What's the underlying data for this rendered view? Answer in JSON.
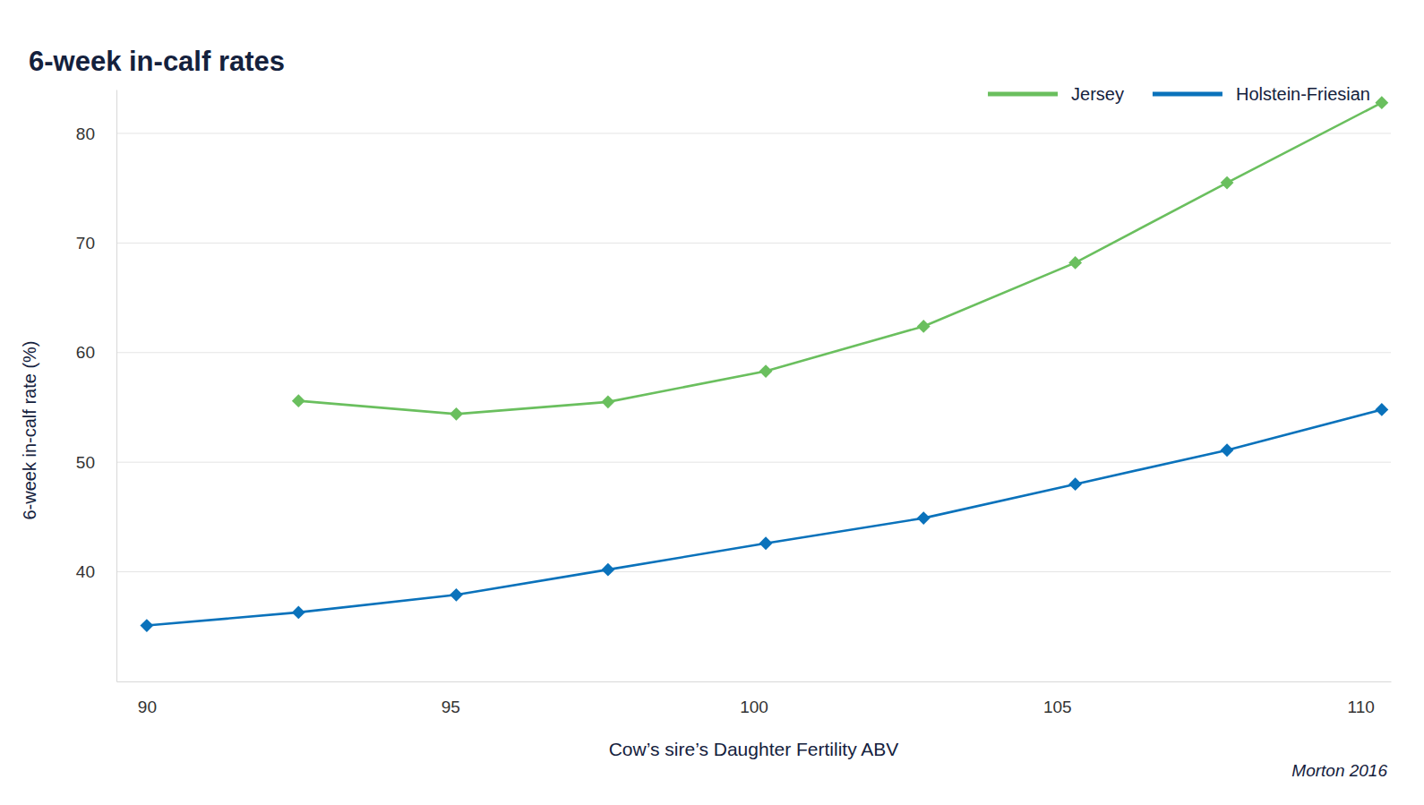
{
  "chart_data": {
    "type": "line",
    "title": "6-week in-calf rates",
    "x_label": "Cow’s sire’s Daughter Fertility ABV",
    "y_label": "6-week in-calf rate (%)",
    "annotations": [
      "Morton 2016"
    ],
    "x": [
      90,
      92.5,
      95.1,
      97.6,
      100.2,
      102.8,
      105.3,
      107.8,
      110.35
    ],
    "series": [
      {
        "name": "Jersey",
        "color": "#6abf5e",
        "marker": "diamond",
        "line_style": "solid",
        "values": [
          null,
          55.6,
          54.4,
          55.5,
          58.3,
          62.4,
          68.2,
          75.5,
          82.8
        ]
      },
      {
        "name": "Holstein-Friesian",
        "color": "#0a72bb",
        "marker": "diamond",
        "line_style": "solid",
        "values": [
          35.1,
          36.3,
          37.9,
          40.2,
          42.6,
          44.9,
          48.0,
          51.1,
          54.8
        ]
      }
    ],
    "xlim": [
      89.5,
      110.5
    ],
    "xticks": [
      90,
      95,
      100,
      105,
      110
    ],
    "ylim": [
      30,
      84
    ],
    "yticks": [
      40,
      50,
      60,
      70,
      80
    ],
    "grid": true,
    "legend": "top-right"
  }
}
